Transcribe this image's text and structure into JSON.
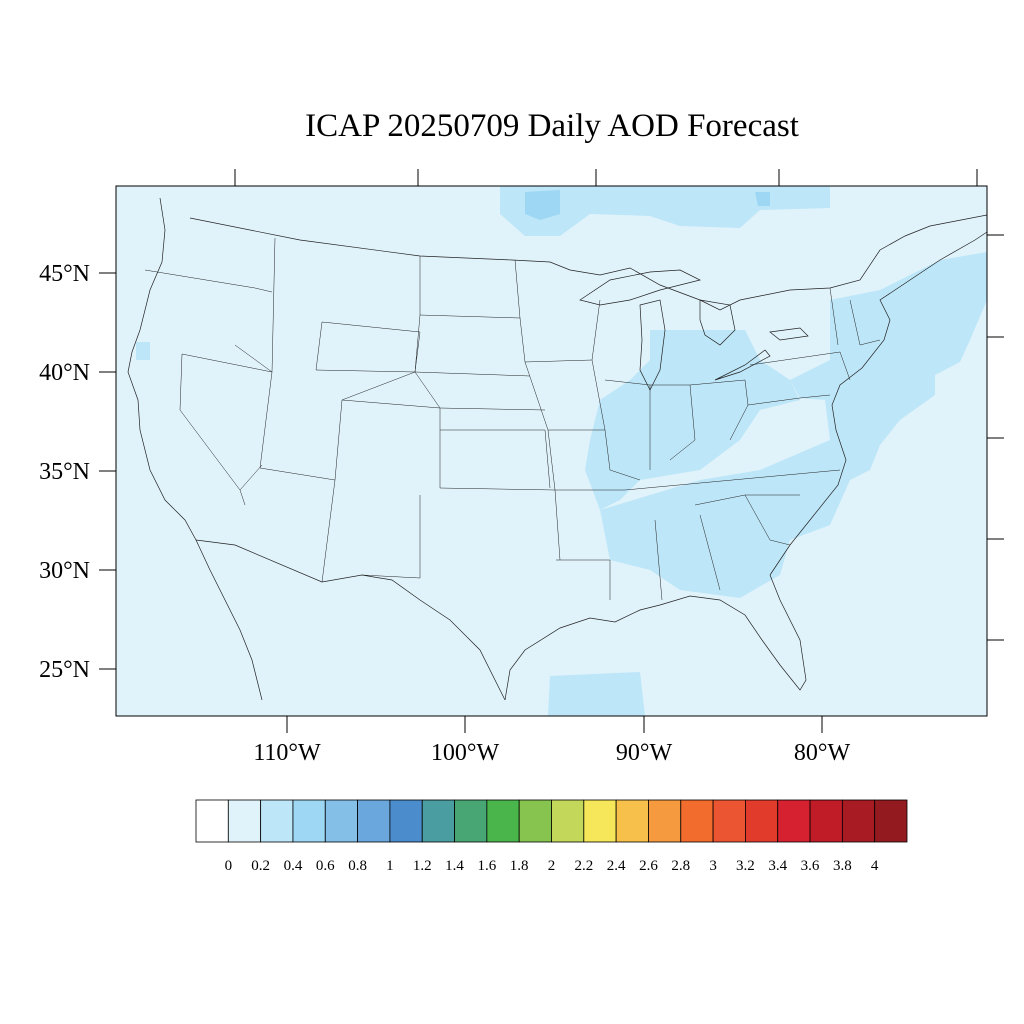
{
  "title": "ICAP 20250709 Daily AOD Forecast",
  "map": {
    "lat_labels": [
      "45°N",
      "40°N",
      "35°N",
      "30°N",
      "25°N"
    ],
    "lon_labels": [
      "110°W",
      "100°W",
      "90°W",
      "80°W"
    ],
    "base_color": "#e0f3fb",
    "regions": [
      {
        "name": "ohio-valley-aod",
        "level": "0.2-0.4"
      },
      {
        "name": "southeast-aod",
        "level": "0.2-0.4"
      },
      {
        "name": "atlantic-coast-aod",
        "level": "0.2-0.4"
      },
      {
        "name": "canada-aod",
        "level": "0.2-0.6"
      },
      {
        "name": "gulf-aod",
        "level": "0.2-0.4"
      }
    ]
  },
  "colorbar": {
    "labels": [
      "0",
      "0.2",
      "0.4",
      "0.6",
      "0.8",
      "1",
      "1.2",
      "1.4",
      "1.6",
      "1.8",
      "2",
      "2.2",
      "2.4",
      "2.6",
      "2.8",
      "3",
      "3.2",
      "3.4",
      "3.6",
      "3.8",
      "4"
    ],
    "colors": [
      "#ffffff",
      "#e0f3fb",
      "#bde6f8",
      "#9dd7f4",
      "#83bfe6",
      "#6aa7dc",
      "#4a8ccc",
      "#4a9da0",
      "#48a675",
      "#4ab54a",
      "#86c44f",
      "#c3d75a",
      "#f6e65a",
      "#f7c04a",
      "#f69a3f",
      "#f26c2e",
      "#ec5532",
      "#e03b2b",
      "#d62130",
      "#bf1c27",
      "#a81b22",
      "#931b1f"
    ]
  }
}
